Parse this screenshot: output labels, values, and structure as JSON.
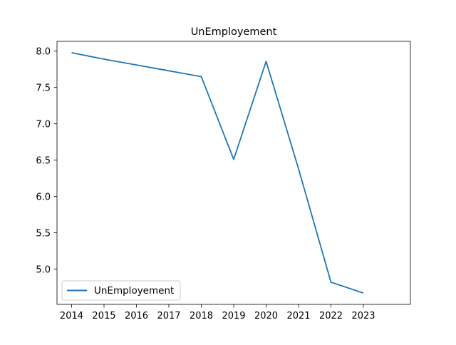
{
  "chart_data": {
    "type": "line",
    "title": "UnEmployement",
    "xlabel": "",
    "ylabel": "",
    "x": [
      2014,
      2015,
      2016,
      2017,
      2018,
      2019,
      2020,
      2021,
      2022,
      2023
    ],
    "series": [
      {
        "name": "UnEmployement",
        "color": "#1f77b4",
        "values": [
          7.98,
          7.89,
          7.81,
          7.73,
          7.65,
          6.51,
          7.86,
          6.38,
          4.82,
          4.67
        ]
      }
    ],
    "xticks": [
      "2014",
      "2015",
      "2016",
      "2017",
      "2018",
      "2019",
      "2020",
      "2021",
      "2022",
      "2023"
    ],
    "yticks": [
      "5.0",
      "5.5",
      "6.0",
      "6.5",
      "7.0",
      "7.5",
      "8.0"
    ],
    "xlim": [
      2013.55,
      2024.45
    ],
    "ylim": [
      4.5145,
      8.1355
    ],
    "grid": false,
    "legend_position": "lower left"
  }
}
